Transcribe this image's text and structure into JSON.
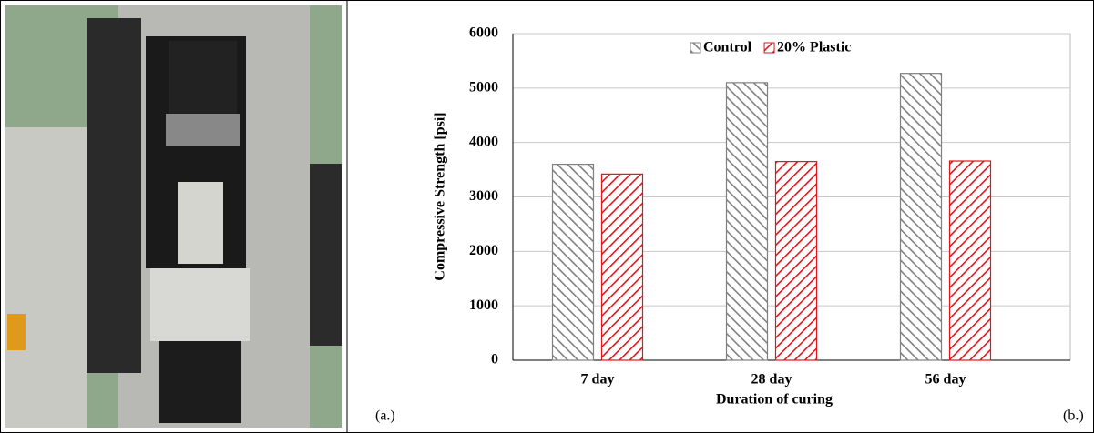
{
  "panel_labels": [
    "(a.)",
    "(b.)"
  ],
  "chart_data": {
    "type": "bar",
    "categories": [
      "7 day",
      "28 day",
      "56 day"
    ],
    "series": [
      {
        "name": "Control",
        "color": "#808080",
        "values": [
          3600,
          5100,
          5270
        ]
      },
      {
        "name": "20% Plastic",
        "color": "#e0161d",
        "values": [
          3420,
          3650,
          3660
        ]
      }
    ],
    "x_label": "Duration of curing",
    "y_label": "Compressive Strength [psi]",
    "ylim": [
      0,
      6000
    ],
    "yticks": [
      0,
      1000,
      2000,
      3000,
      4000,
      5000,
      6000
    ],
    "grid": true,
    "legend": "top"
  }
}
